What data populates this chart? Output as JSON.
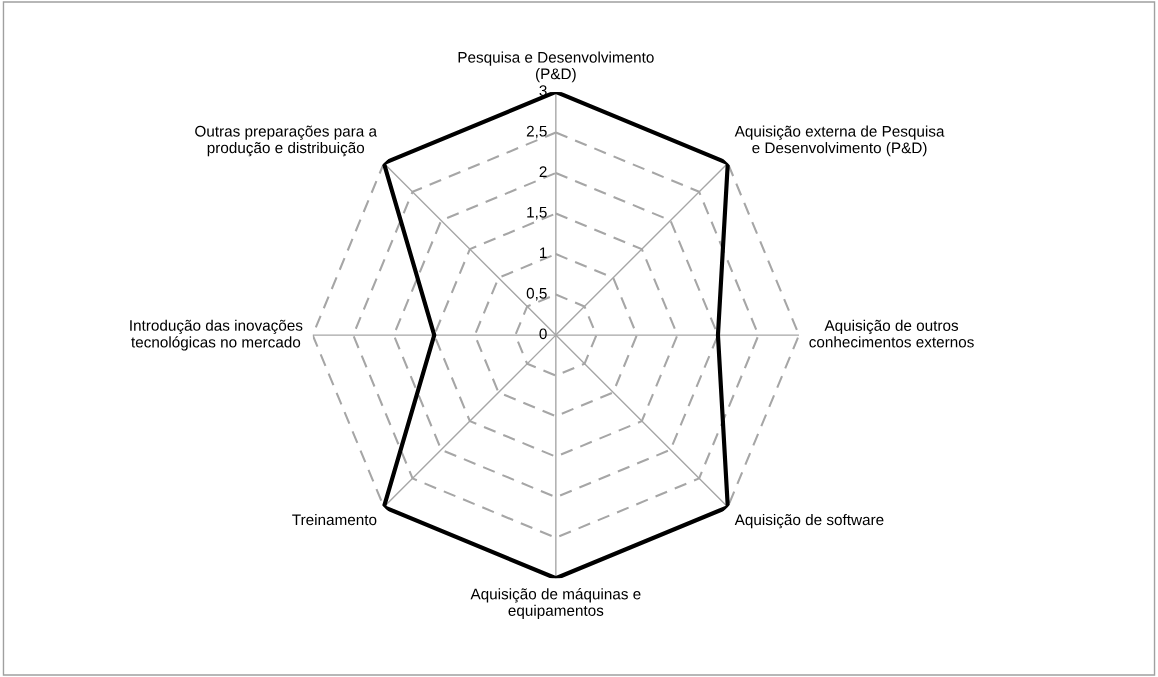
{
  "chart_data": {
    "type": "radar",
    "categories": [
      "Pesquisa e Desenvolvimento\n(P&D)",
      "Aquisição externa de Pesquisa\ne Desenvolvimento (P&D)",
      "Aquisição de outros\nconhecimentos externos",
      "Aquisição de software",
      "Aquisição de máquinas e\nequipamentos",
      "Treinamento",
      "Introdução das inovações\ntecnológicas no mercado",
      "Outras preparações para a\nprodução e distribuição"
    ],
    "series": [
      {
        "color": "#000000",
        "values": [
          3,
          3,
          2,
          3,
          3,
          3,
          1.5,
          3
        ]
      }
    ],
    "ylim": [
      0,
      3
    ],
    "yticks": [
      0,
      {
        "value": 0.5,
        "label": "0,5"
      },
      1,
      {
        "value": 1.5,
        "label": "1,5"
      },
      2,
      {
        "value": 2.5,
        "label": "2,5"
      },
      3
    ],
    "grid": true,
    "marker": "none",
    "line_style": "solid"
  }
}
